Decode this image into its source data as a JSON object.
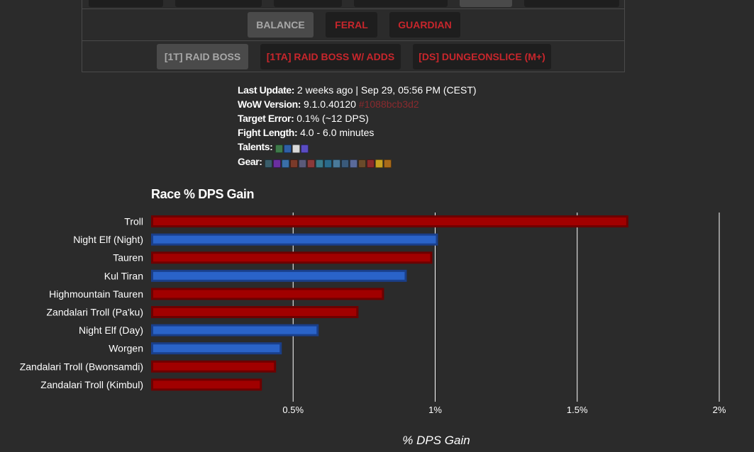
{
  "selector": {
    "spec_buttons": [
      {
        "label": "BALANCE",
        "active": true
      },
      {
        "label": "FERAL",
        "active": false
      },
      {
        "label": "GUARDIAN",
        "active": false
      }
    ],
    "fight_buttons": [
      {
        "label": "[1T] RAID BOSS",
        "active": true
      },
      {
        "label": "[1TA] RAID BOSS W/ ADDS",
        "active": false
      },
      {
        "label": "[DS] DUNGEONSLICE (M+)",
        "active": false
      }
    ]
  },
  "info": {
    "last_update_label": "Last Update:",
    "last_update_value": "2 weeks ago | Sep 29, 05:56 PM (CEST)",
    "wow_version_label": "WoW Version:",
    "wow_version_value": "9.1.0.40120",
    "wow_version_hash": "#1088bcb3d2",
    "target_error_label": "Target Error:",
    "target_error_value": "0.1% (~12 DPS)",
    "fight_length_label": "Fight Length:",
    "fight_length_value": "4.0 - 6.0 minutes",
    "talents_label": "Talents:",
    "talent_icons": [
      "talent-icon-1",
      "talent-icon-2",
      "talent-icon-3",
      "talent-icon-4"
    ],
    "gear_label": "Gear:",
    "gear_icons": [
      "head-icon",
      "neck-icon",
      "shoulder-icon",
      "back-icon",
      "chest-icon",
      "wrist-icon",
      "hands-icon",
      "waist-icon",
      "legs-icon",
      "feet-icon",
      "finger1-icon",
      "finger2-icon",
      "trinket1-icon",
      "trinket2-icon",
      "weapon-icon"
    ]
  },
  "chart_data": {
    "type": "bar",
    "orientation": "horizontal",
    "title": "Race % DPS Gain",
    "xlabel": "% DPS Gain",
    "xlim": [
      0,
      2
    ],
    "xticks": [
      0.5,
      1,
      1.5,
      2
    ],
    "xtick_labels": [
      "0.5%",
      "1%",
      "1.5%",
      "2%"
    ],
    "grid": true,
    "categories": [
      "Troll",
      "Night Elf (Night)",
      "Tauren",
      "Kul Tiran",
      "Highmountain Tauren",
      "Zandalari Troll (Pa'ku)",
      "Night Elf (Day)",
      "Worgen",
      "Zandalari Troll (Bwonsamdi)",
      "Zandalari Troll (Kimbul)"
    ],
    "values": [
      1.68,
      1.01,
      0.99,
      0.9,
      0.82,
      0.73,
      0.59,
      0.46,
      0.44,
      0.39
    ],
    "bar_colors": [
      "#a10000",
      "#2a63c8",
      "#a10000",
      "#2a63c8",
      "#a10000",
      "#a10000",
      "#2a63c8",
      "#2a63c8",
      "#a10000",
      "#a10000"
    ],
    "bar_border_colors": [
      "#6e0000",
      "#1a3f8a",
      "#6e0000",
      "#1a3f8a",
      "#6e0000",
      "#6e0000",
      "#1a3f8a",
      "#1a3f8a",
      "#6e0000",
      "#6e0000"
    ]
  }
}
